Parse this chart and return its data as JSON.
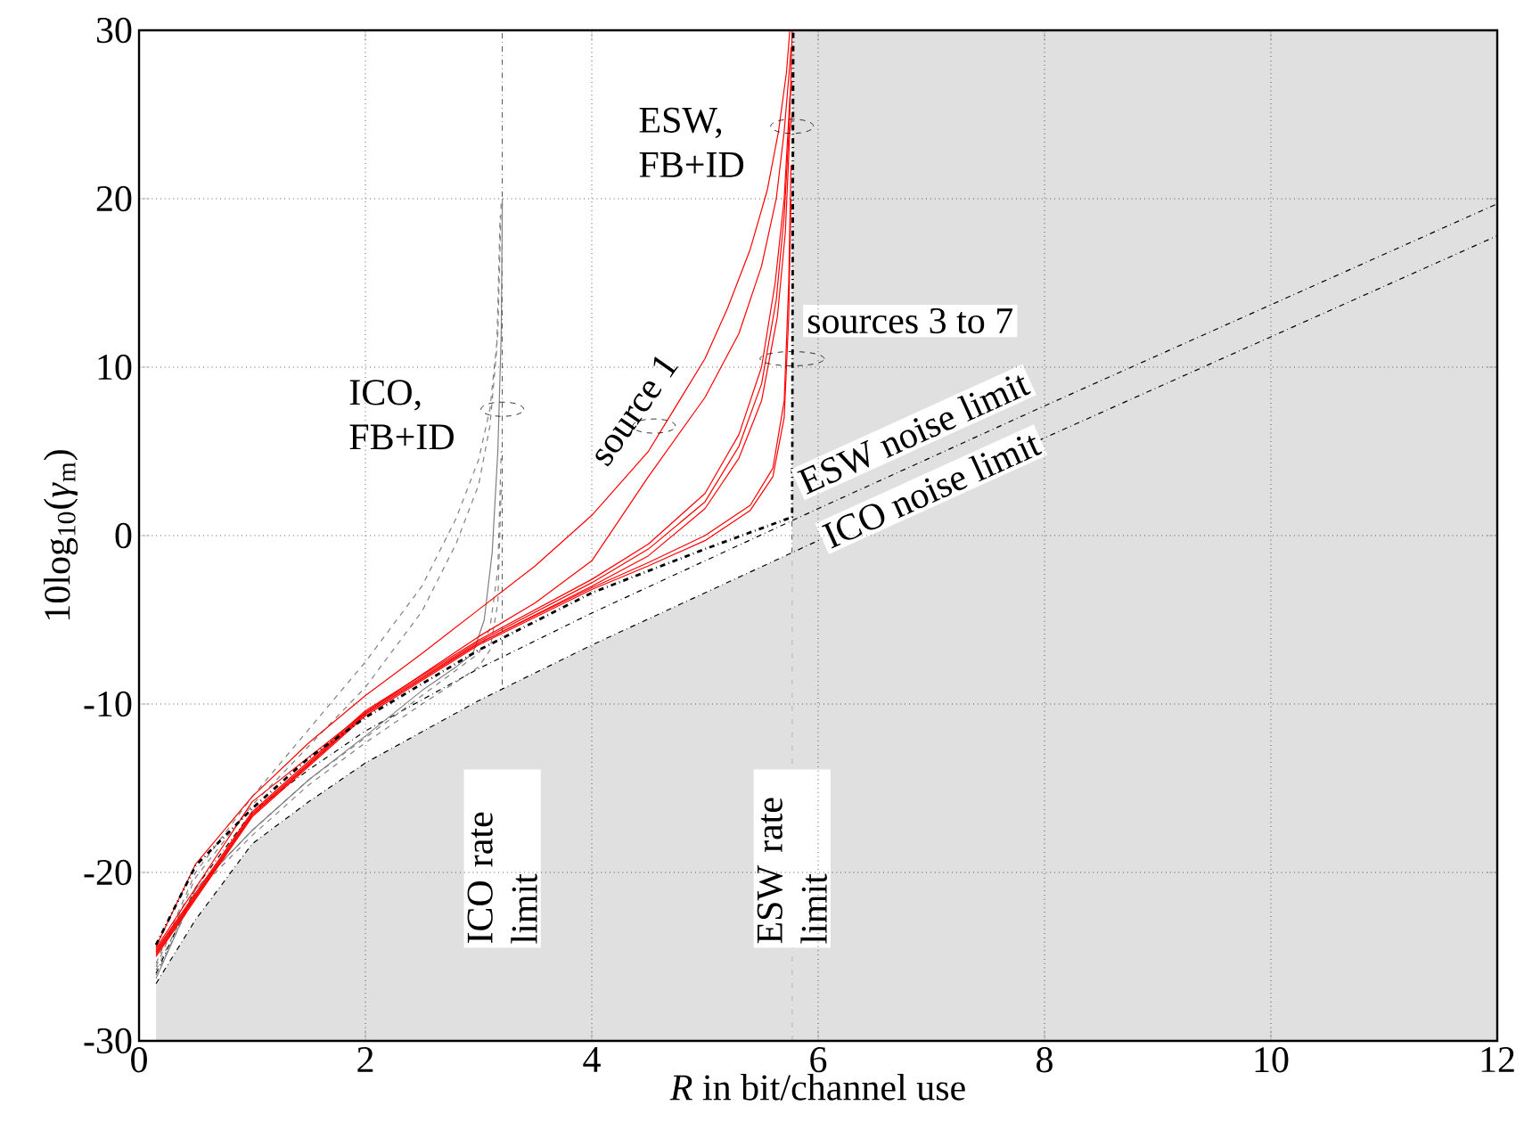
{
  "chart_data": {
    "type": "line",
    "xlabel": "*R* in bit/channel use",
    "ylabel": "10log$_{10}$(*γ*$_{m}$)",
    "xlim": [
      0,
      12
    ],
    "ylim": [
      -30,
      30
    ],
    "xticks": [
      0,
      2,
      4,
      6,
      8,
      10,
      12
    ],
    "yticks": [
      -30,
      -20,
      -10,
      0,
      10,
      20,
      30
    ],
    "grid": true,
    "marker": "none",
    "bands": [
      {
        "axis": "x",
        "from": 5.77,
        "to": 12,
        "color": "#e0e0e0"
      }
    ],
    "ref_lines": [
      {
        "axis": "x",
        "value": 3.21,
        "label": "ICO rate limit",
        "line_style": "dashdot",
        "color": "#000000"
      },
      {
        "axis": "x",
        "value": 5.77,
        "label": "ESW rate limit",
        "line_style": "dashdot",
        "color": "#000000"
      }
    ],
    "series": [
      {
        "type": "area",
        "color": "#e0e0e0",
        "x": [
          0.15,
          0.15,
          0.5,
          1,
          1.5,
          2,
          3,
          4,
          5,
          5.77,
          5.77
        ],
        "values": [
          -30,
          -26.6,
          -22.8,
          -18.3,
          -15.8,
          -13.5,
          -9.8,
          -6.5,
          -3.4,
          -1.0,
          -30
        ]
      },
      {
        "name": "ESW noise limit",
        "color": "#000000",
        "line_style": "dashdot",
        "x": [
          0.15,
          0.5,
          1,
          1.5,
          2,
          3,
          4,
          5,
          6,
          8,
          10,
          12
        ],
        "values": [
          -26.0,
          -20.9,
          -16.4,
          -13.9,
          -11.6,
          -7.9,
          -4.6,
          -1.5,
          1.6,
          7.7,
          13.7,
          19.7
        ]
      },
      {
        "name": "ICO noise limit",
        "color": "#000000",
        "line_style": "dashdot",
        "x": [
          0.15,
          0.5,
          1,
          1.5,
          2,
          3,
          4,
          5,
          6,
          8,
          10,
          12
        ],
        "values": [
          -26.6,
          -22.8,
          -18.3,
          -15.8,
          -13.5,
          -9.8,
          -6.5,
          -3.4,
          -0.3,
          5.8,
          11.8,
          17.8
        ]
      },
      {
        "color": "#808080",
        "line_style": "dashed",
        "x": [
          0.15,
          0.5,
          1,
          1.5,
          2,
          2.5,
          2.8,
          3,
          3.1,
          3.17,
          3.2
        ],
        "values": [
          -25.4,
          -20,
          -15.5,
          -11.5,
          -7.5,
          -3,
          1,
          4.5,
          7.5,
          12,
          20
        ]
      },
      {
        "color": "#808080",
        "line_style": "dashed",
        "x": [
          0.15,
          0.5,
          1,
          1.5,
          2,
          2.5,
          2.8,
          3,
          3.1,
          3.16,
          3.19
        ],
        "values": [
          -25.6,
          -20.3,
          -16,
          -12.5,
          -9,
          -4.5,
          -0.5,
          3,
          6.5,
          11,
          19
        ]
      },
      {
        "color": "#808080",
        "line_style": "dashed",
        "x": [
          0.15,
          0.5,
          1,
          1.5,
          2,
          2.5,
          2.8,
          3,
          3.1,
          3.17,
          3.2
        ],
        "values": [
          -25.8,
          -21,
          -17.5,
          -14.5,
          -12,
          -9.5,
          -8,
          -7,
          -5.5,
          -2,
          5
        ]
      },
      {
        "color": "#808080",
        "line_style": "dashed",
        "x": [
          0.15,
          0.5,
          1,
          1.5,
          2,
          2.5,
          2.8,
          3,
          3.1,
          3.17,
          3.2
        ],
        "values": [
          -26.1,
          -21.2,
          -17.8,
          -14.8,
          -12.3,
          -10,
          -8.7,
          -7.8,
          -6.8,
          -4,
          3
        ]
      },
      {
        "color": "#808080",
        "line_style": "solid",
        "x": [
          0.15,
          0.5,
          1,
          1.5,
          2,
          2.5,
          2.8,
          2.95,
          3.05,
          3.12,
          3.17,
          3.2,
          3.21
        ],
        "values": [
          -26.3,
          -21,
          -17.5,
          -14.5,
          -11.9,
          -9.2,
          -7.8,
          -7,
          -5,
          -1,
          5,
          12,
          20
        ]
      },
      {
        "color": "#ff0000",
        "line_style": "solid",
        "x": [
          0.15,
          0.5,
          1,
          1.5,
          2,
          2.5,
          3,
          3.5,
          4,
          4.5,
          5,
          5.2,
          5.4,
          5.55,
          5.65,
          5.72,
          5.75
        ],
        "values": [
          -24.4,
          -19.5,
          -15.5,
          -12.3,
          -9.5,
          -7,
          -4.4,
          -1.8,
          1.2,
          5,
          10.5,
          13.5,
          17,
          20.5,
          24,
          27.5,
          30
        ]
      },
      {
        "color": "#ff0000",
        "line_style": "solid",
        "x": [
          0.15,
          1,
          2,
          3,
          3.5,
          4,
          4.5,
          5,
          5.3,
          5.5,
          5.63,
          5.7,
          5.75,
          5.76
        ],
        "values": [
          -24.5,
          -15.8,
          -10.5,
          -6,
          -4,
          -1.5,
          3.5,
          8.2,
          12,
          16,
          20,
          24,
          28,
          29
        ]
      },
      {
        "color": "#ff0000",
        "line_style": "solid",
        "x": [
          0.15,
          1,
          2,
          3,
          4,
          4.5,
          5,
          5.3,
          5.5,
          5.62,
          5.7,
          5.75,
          5.77
        ],
        "values": [
          -24.6,
          -16.4,
          -10.4,
          -6.2,
          -2.6,
          -0.5,
          2.5,
          6,
          10,
          15,
          20,
          26,
          27
        ]
      },
      {
        "color": "#ff0000",
        "line_style": "solid",
        "x": [
          0.15,
          1,
          2,
          3,
          4,
          4.5,
          5,
          5.3,
          5.5,
          5.63,
          5.7,
          5.75,
          5.77
        ],
        "values": [
          -24.7,
          -16.5,
          -10.5,
          -6.3,
          -2.8,
          -0.8,
          2,
          5.3,
          9,
          14,
          19,
          25,
          30
        ]
      },
      {
        "color": "#ff0000",
        "line_style": "solid",
        "x": [
          0.15,
          1,
          2,
          3,
          4,
          4.5,
          5,
          5.3,
          5.5,
          5.64,
          5.71,
          5.75,
          5.77
        ],
        "values": [
          -24.8,
          -16.6,
          -10.6,
          -6.4,
          -3,
          -1.2,
          1.6,
          4.6,
          8,
          13,
          18,
          24,
          25
        ]
      },
      {
        "color": "#ff0000",
        "line_style": "solid",
        "x": [
          0.15,
          1,
          2,
          3,
          4,
          4.5,
          5,
          5.4,
          5.6,
          5.7,
          5.74,
          5.76
        ],
        "values": [
          -24.9,
          -16.6,
          -10.6,
          -6.4,
          -3.1,
          -1.6,
          0,
          1.8,
          4,
          8,
          15,
          22
        ]
      },
      {
        "color": "#ff0000",
        "line_style": "solid",
        "x": [
          0.15,
          1,
          2,
          3,
          4,
          4.5,
          5,
          5.4,
          5.6,
          5.7,
          5.74,
          5.76
        ],
        "values": [
          -25.0,
          -16.7,
          -10.7,
          -6.5,
          -3.2,
          -1.8,
          -0.3,
          1.5,
          3.5,
          7,
          13,
          20
        ]
      },
      {
        "color": "#000000",
        "line_style": "dashdot",
        "x": [
          0.15,
          0.5,
          1,
          1.5,
          2,
          3,
          4,
          5,
          5.77,
          5.78
        ],
        "values": [
          -24.3,
          -19.6,
          -16.2,
          -13.2,
          -10.8,
          -6.8,
          -3.4,
          -0.8,
          1.1,
          30
        ]
      }
    ],
    "annotations": [
      {
        "text": "ESW, FB+ID",
        "x": 5.77,
        "y": 24.3
      },
      {
        "text": "ICO, FB+ID",
        "x": 3.21,
        "y": 7.5
      },
      {
        "text": "sources 3 to 7",
        "x": 5.77,
        "y": 10.5
      },
      {
        "text": "source 1",
        "x": 4.55,
        "y": 6.5
      }
    ]
  }
}
